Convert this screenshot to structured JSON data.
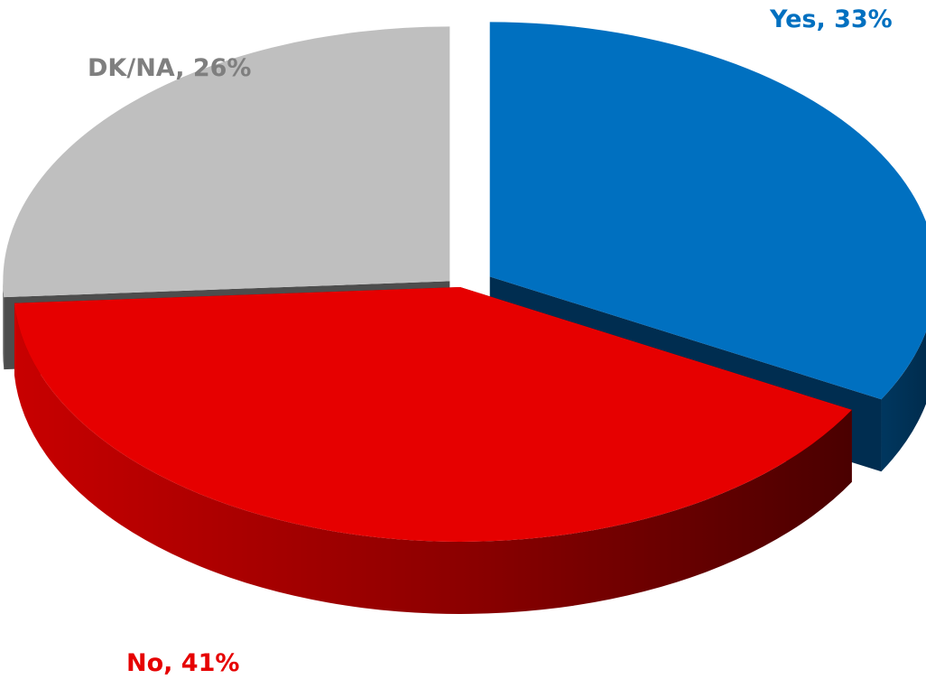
{
  "chart_data": {
    "type": "pie",
    "title": "",
    "categories": [
      "Yes",
      "No",
      "DK/NA"
    ],
    "values": [
      33,
      41,
      26
    ],
    "labels": [
      "Yes, 33%",
      "No, 41%",
      "DK/NA, 26%"
    ],
    "colors": [
      "#0070C0",
      "#E60000",
      "#BFBFBF"
    ],
    "label_colors": [
      "#0070C0",
      "#E60000",
      "#7F7F7F"
    ],
    "exploded": true,
    "three_d": true,
    "legend": "none"
  }
}
